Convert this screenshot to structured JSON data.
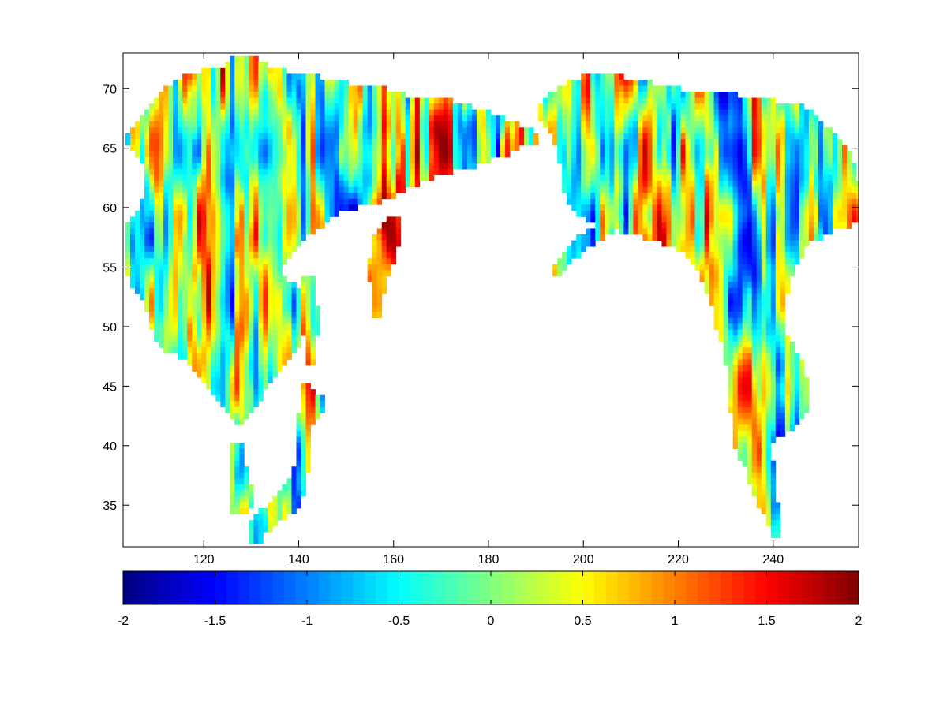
{
  "chart_data": {
    "type": "heatmap",
    "title": "",
    "xlabel": "",
    "ylabel": "",
    "xlim": [
      103,
      258
    ],
    "ylim": [
      31.5,
      73
    ],
    "x_ticks": [
      120,
      140,
      160,
      180,
      200,
      220,
      240
    ],
    "y_ticks": [
      35,
      40,
      45,
      50,
      55,
      60,
      65,
      70
    ],
    "x_tick_labels": [
      "120",
      "140",
      "160",
      "180",
      "200",
      "220",
      "240"
    ],
    "y_tick_labels": [
      "35",
      "40",
      "45",
      "50",
      "55",
      "60",
      "65",
      "70"
    ],
    "grid": false,
    "colormap": "jet",
    "colorbar": {
      "orientation": "horizontal",
      "placement": "below",
      "range": [
        -2,
        2
      ],
      "ticks": [
        -2,
        -1.5,
        -1,
        -0.5,
        0,
        0.5,
        1,
        1.5,
        2
      ],
      "tick_labels": [
        "-2",
        "-1.5",
        "-1",
        "-0.5",
        "0",
        "0.5",
        "1",
        "1.5",
        "2"
      ],
      "levels": 64
    },
    "cell_size": {
      "lon": 1.0,
      "lat": 0.5
    },
    "land_regions": [
      {
        "name": "asia",
        "rows": [
          [
            72.5,
            126,
            131
          ],
          [
            72,
            125,
            133
          ],
          [
            71.5,
            120,
            137
          ],
          [
            71,
            116,
            144
          ],
          [
            70.5,
            114,
            150
          ],
          [
            70,
            112,
            158
          ],
          [
            69.5,
            111,
            162
          ],
          [
            69,
            110,
            172
          ],
          [
            68.5,
            109,
            176
          ],
          [
            68,
            108,
            180
          ],
          [
            67.5,
            107,
            183
          ],
          [
            67,
            106,
            186
          ],
          [
            66.5,
            105,
            189
          ],
          [
            66,
            104,
            190
          ],
          [
            65.5,
            104,
            190
          ],
          [
            65,
            105,
            186
          ],
          [
            64.5,
            106,
            184
          ],
          [
            64,
            107,
            180
          ],
          [
            63.5,
            108,
            177
          ],
          [
            63,
            108,
            172
          ],
          [
            62.5,
            108,
            168
          ],
          [
            62,
            108,
            165
          ],
          [
            61.5,
            108,
            162
          ],
          [
            61,
            108,
            160
          ],
          [
            60.5,
            107,
            157
          ],
          [
            60,
            107,
            152
          ],
          [
            59.5,
            106,
            148
          ],
          [
            59,
            105,
            146
          ],
          [
            58.5,
            104,
            145
          ],
          [
            58,
            104,
            143
          ],
          [
            57.5,
            104,
            141
          ],
          [
            57,
            104,
            140
          ],
          [
            56.5,
            104,
            139
          ],
          [
            56,
            104,
            138
          ],
          [
            55.5,
            104,
            137
          ],
          [
            55,
            104,
            136
          ],
          [
            54.5,
            104,
            136
          ],
          [
            54,
            105,
            137
          ],
          [
            53.5,
            105,
            139
          ],
          [
            53,
            106,
            141
          ],
          [
            52.5,
            107,
            142
          ],
          [
            52,
            108,
            142
          ],
          [
            51.5,
            108,
            142
          ],
          [
            51,
            109,
            142
          ],
          [
            50.5,
            109,
            142
          ],
          [
            50,
            109,
            141
          ],
          [
            49.5,
            110,
            141
          ],
          [
            49,
            110,
            140
          ],
          [
            48.5,
            111,
            140
          ],
          [
            48,
            112,
            139
          ],
          [
            47.5,
            115,
            138
          ],
          [
            47,
            117,
            137
          ],
          [
            46.5,
            118,
            136
          ],
          [
            46,
            119,
            135
          ],
          [
            45.5,
            120,
            134
          ],
          [
            45,
            121,
            133
          ],
          [
            44.5,
            122,
            132
          ],
          [
            44,
            123,
            132
          ],
          [
            43.5,
            124,
            131
          ],
          [
            43,
            125,
            130
          ],
          [
            42.5,
            126,
            129
          ],
          [
            42,
            127,
            128
          ]
        ]
      },
      {
        "name": "kamchatka",
        "rows": [
          [
            59,
            159,
            161
          ],
          [
            58.5,
            158,
            161
          ],
          [
            58,
            157,
            161
          ],
          [
            57.5,
            156,
            161
          ],
          [
            57,
            156,
            161
          ],
          [
            56.5,
            156,
            160
          ],
          [
            56,
            156,
            160
          ],
          [
            55.5,
            155,
            160
          ],
          [
            55,
            155,
            159
          ],
          [
            54.5,
            155,
            159
          ],
          [
            54,
            155,
            158
          ],
          [
            53.5,
            156,
            158
          ],
          [
            53,
            156,
            158
          ],
          [
            52.5,
            156,
            157
          ],
          [
            52,
            156,
            157
          ],
          [
            51.5,
            156,
            157
          ],
          [
            51,
            156,
            157
          ]
        ]
      },
      {
        "name": "sakhalin",
        "rows": [
          [
            54,
            141,
            143
          ],
          [
            53.5,
            141,
            143
          ],
          [
            53,
            141,
            143
          ],
          [
            52.5,
            141,
            143
          ],
          [
            52,
            142,
            143
          ],
          [
            51.5,
            142,
            144
          ],
          [
            51,
            142,
            144
          ],
          [
            50.5,
            142,
            144
          ],
          [
            50,
            142,
            144
          ],
          [
            49.5,
            142,
            144
          ],
          [
            49,
            142,
            143
          ],
          [
            48.5,
            142,
            143
          ],
          [
            48,
            142,
            143
          ],
          [
            47.5,
            142,
            143
          ],
          [
            47,
            142,
            143
          ]
        ]
      },
      {
        "name": "japan",
        "rows": [
          [
            45,
            141,
            142
          ],
          [
            44.5,
            141,
            143
          ],
          [
            44,
            141,
            145
          ],
          [
            43.5,
            141,
            145
          ],
          [
            43,
            141,
            145
          ],
          [
            42.5,
            140,
            144
          ],
          [
            42,
            140,
            143
          ],
          [
            41.5,
            140,
            142
          ],
          [
            41,
            140,
            142
          ],
          [
            40.5,
            140,
            142
          ],
          [
            40,
            140,
            142
          ],
          [
            39.5,
            140,
            142
          ],
          [
            39,
            140,
            142
          ],
          [
            38.5,
            140,
            142
          ],
          [
            38,
            139,
            142
          ],
          [
            37.5,
            139,
            141
          ],
          [
            37,
            138,
            141
          ],
          [
            36.5,
            137,
            141
          ],
          [
            36,
            136,
            141
          ],
          [
            35.5,
            135,
            140
          ],
          [
            35,
            134,
            140
          ],
          [
            34.5,
            132,
            139
          ],
          [
            34,
            131,
            137
          ],
          [
            33.5,
            130,
            135
          ],
          [
            33,
            130,
            134
          ],
          [
            32.5,
            130,
            132
          ],
          [
            32,
            130,
            132
          ]
        ]
      },
      {
        "name": "korea",
        "rows": [
          [
            40,
            126,
            128
          ],
          [
            39.5,
            126,
            128
          ],
          [
            39,
            126,
            128
          ],
          [
            38.5,
            126,
            128
          ],
          [
            38,
            126,
            129
          ],
          [
            37.5,
            126,
            129
          ],
          [
            37,
            126,
            129
          ],
          [
            36.5,
            126,
            130
          ],
          [
            36,
            126,
            130
          ],
          [
            35.5,
            126,
            130
          ],
          [
            35,
            126,
            130
          ],
          [
            34.5,
            126,
            129
          ]
        ]
      },
      {
        "name": "north-america",
        "rows": [
          [
            71,
            200,
            208
          ],
          [
            70.5,
            197,
            214
          ],
          [
            70,
            195,
            220
          ],
          [
            69.5,
            193,
            232
          ],
          [
            69,
            192,
            240
          ],
          [
            68.5,
            191,
            246
          ],
          [
            68,
            191,
            248
          ],
          [
            67.5,
            191,
            249
          ],
          [
            67,
            192,
            250
          ],
          [
            66.5,
            193,
            252
          ],
          [
            66,
            194,
            253
          ],
          [
            65.5,
            194,
            254
          ],
          [
            65,
            195,
            255
          ],
          [
            64.5,
            195,
            256
          ],
          [
            64,
            195,
            256
          ],
          [
            63.5,
            196,
            257
          ],
          [
            63,
            196,
            257
          ],
          [
            62.5,
            196,
            257
          ],
          [
            62,
            196,
            258
          ],
          [
            61.5,
            196,
            258
          ],
          [
            61,
            197,
            258
          ],
          [
            60.5,
            197,
            258
          ],
          [
            60,
            198,
            258
          ],
          [
            59.5,
            199,
            258
          ],
          [
            59,
            201,
            258
          ],
          [
            58.5,
            204,
            256
          ],
          [
            58,
            208,
            252
          ],
          [
            57.5,
            213,
            250
          ],
          [
            57,
            217,
            247
          ],
          [
            56.5,
            220,
            246
          ],
          [
            56,
            222,
            246
          ],
          [
            55.5,
            223,
            245
          ],
          [
            55,
            224,
            244
          ],
          [
            54.5,
            225,
            244
          ],
          [
            54,
            225,
            243
          ],
          [
            53.5,
            226,
            243
          ],
          [
            53,
            226,
            243
          ],
          [
            52.5,
            227,
            242
          ],
          [
            52,
            227,
            242
          ],
          [
            51.5,
            228,
            242
          ],
          [
            51,
            228,
            242
          ],
          [
            50.5,
            228,
            242
          ],
          [
            50,
            228,
            242
          ],
          [
            49.5,
            229,
            242
          ],
          [
            49,
            229,
            243
          ],
          [
            48.5,
            230,
            244
          ],
          [
            48,
            230,
            244
          ],
          [
            47.5,
            230,
            245
          ],
          [
            47,
            230,
            246
          ],
          [
            46.5,
            231,
            246
          ],
          [
            46,
            231,
            246
          ],
          [
            45.5,
            231,
            247
          ],
          [
            45,
            231,
            247
          ],
          [
            44.5,
            231,
            247
          ],
          [
            44,
            231,
            247
          ],
          [
            43.5,
            231,
            247
          ],
          [
            43,
            231,
            247
          ],
          [
            42.5,
            232,
            246
          ],
          [
            42,
            232,
            245
          ],
          [
            41.5,
            232,
            244
          ],
          [
            41,
            232,
            242
          ],
          [
            40.5,
            232,
            240
          ],
          [
            40,
            232,
            239
          ],
          [
            39.5,
            233,
            239
          ],
          [
            39,
            233,
            239
          ],
          [
            38.5,
            234,
            240
          ],
          [
            38,
            235,
            240
          ],
          [
            37.5,
            235,
            240
          ],
          [
            37,
            235,
            240
          ],
          [
            36.5,
            236,
            240
          ],
          [
            36,
            236,
            240
          ],
          [
            35.5,
            237,
            240
          ],
          [
            35,
            237,
            241
          ],
          [
            34.5,
            238,
            241
          ],
          [
            34,
            239,
            241
          ],
          [
            33.5,
            239,
            241
          ],
          [
            33,
            240,
            241
          ],
          [
            32.5,
            240,
            241
          ]
        ]
      },
      {
        "name": "alaska-peninsula",
        "rows": [
          [
            59,
            205,
            208
          ],
          [
            58.5,
            203,
            207
          ],
          [
            58,
            201,
            206
          ],
          [
            57.5,
            199,
            204
          ],
          [
            57,
            198,
            202
          ],
          [
            56.5,
            197,
            200
          ],
          [
            56,
            196,
            199
          ],
          [
            55.5,
            195,
            197
          ],
          [
            55,
            194,
            196
          ],
          [
            54.5,
            194,
            195
          ]
        ]
      },
      {
        "name": "alaska-panhandle",
        "rows": [
          [
            59,
            222,
            230
          ],
          [
            58.5,
            222,
            228
          ],
          [
            58,
            223,
            227
          ],
          [
            57.5,
            224,
            227
          ],
          [
            57,
            224,
            226
          ],
          [
            56.5,
            225,
            226
          ],
          [
            56,
            225,
            226
          ],
          [
            55.5,
            226,
            227
          ]
        ]
      }
    ]
  }
}
